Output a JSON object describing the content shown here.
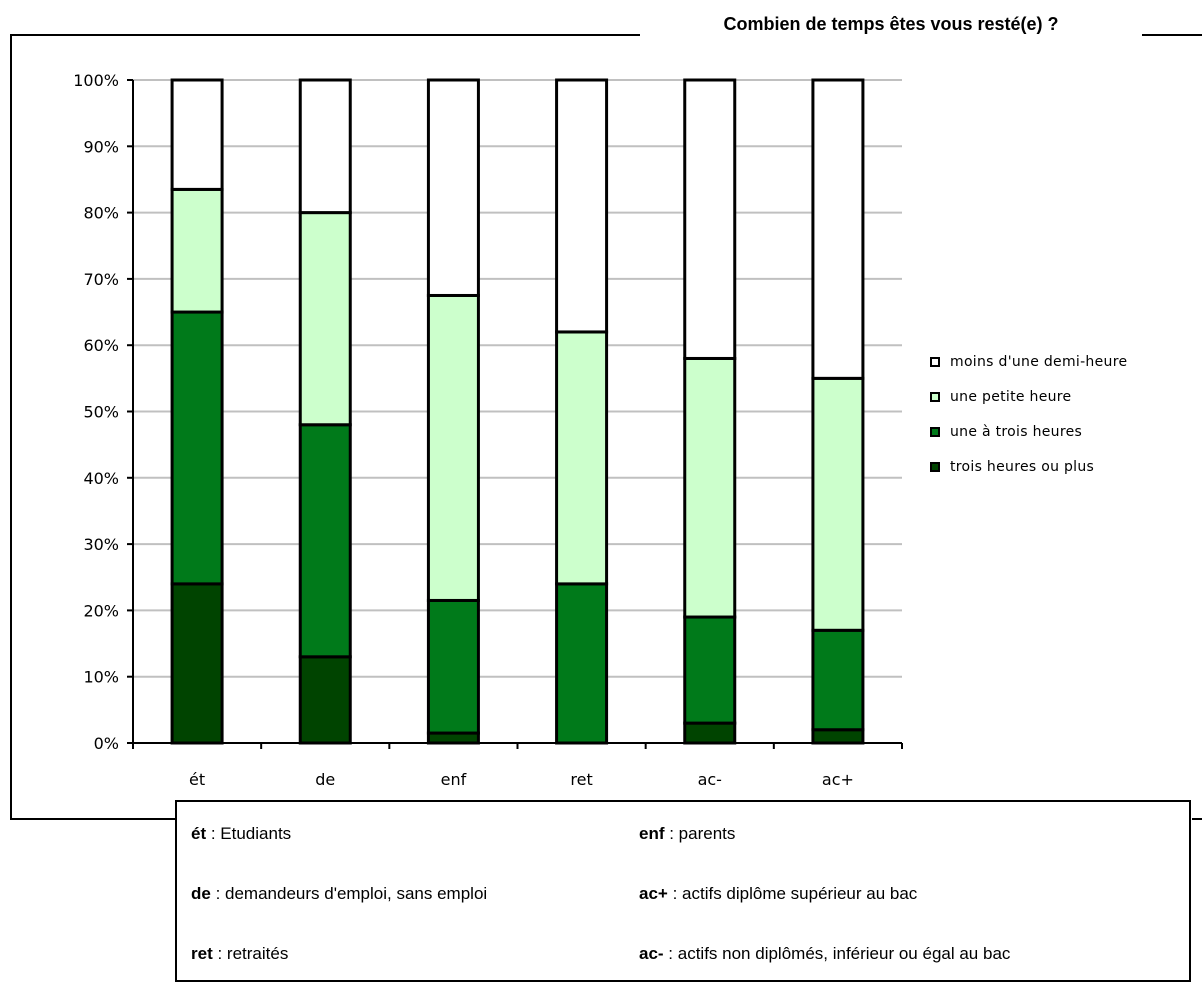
{
  "chart_data": {
    "type": "bar",
    "stacked": true,
    "normalized": true,
    "title": "Combien de temps êtes vous resté(e) ?",
    "categories": [
      "ét",
      "de",
      "enf",
      "ret",
      "ac-",
      "ac+"
    ],
    "y_ticks": [
      "0%",
      "10%",
      "20%",
      "30%",
      "40%",
      "50%",
      "60%",
      "70%",
      "80%",
      "90%",
      "100%"
    ],
    "ylim": [
      0,
      100
    ],
    "grid": true,
    "legend_position": "right",
    "series": [
      {
        "name": "trois heures ou plus",
        "color": "#004400",
        "values": [
          24,
          13,
          1.5,
          0,
          3,
          2
        ]
      },
      {
        "name": "une à trois heures",
        "color": "#007a1a",
        "values": [
          41,
          35,
          20,
          24,
          16,
          15
        ]
      },
      {
        "name": "une petite heure",
        "color": "#ccffcc",
        "values": [
          18.5,
          32,
          46,
          38,
          39,
          38
        ]
      },
      {
        "name": "moins d'une demi-heure",
        "color": "#ffffff",
        "values": [
          16.5,
          20,
          32.5,
          38,
          42,
          45
        ]
      }
    ]
  },
  "legend": {
    "items": [
      {
        "label": "moins d'une demi-heure",
        "color": "#ffffff"
      },
      {
        "label": "une petite heure",
        "color": "#ccffcc"
      },
      {
        "label": "une à trois heures",
        "color": "#007a1a"
      },
      {
        "label": "trois heures ou plus",
        "color": "#004400"
      }
    ]
  },
  "key": {
    "et": {
      "abbr": "ét",
      "text": " : Etudiants"
    },
    "de": {
      "abbr": "de",
      "text": " : demandeurs d'emploi, sans emploi"
    },
    "ret": {
      "abbr": "ret",
      "text": " : retraités"
    },
    "enf": {
      "abbr": "enf",
      "text": " : parents"
    },
    "acplus": {
      "abbr": "ac+",
      "text": " : actifs diplôme supérieur au bac"
    },
    "acminus": {
      "abbr": "ac-",
      "text": " : actifs non diplômés, inférieur ou égal au bac"
    }
  }
}
